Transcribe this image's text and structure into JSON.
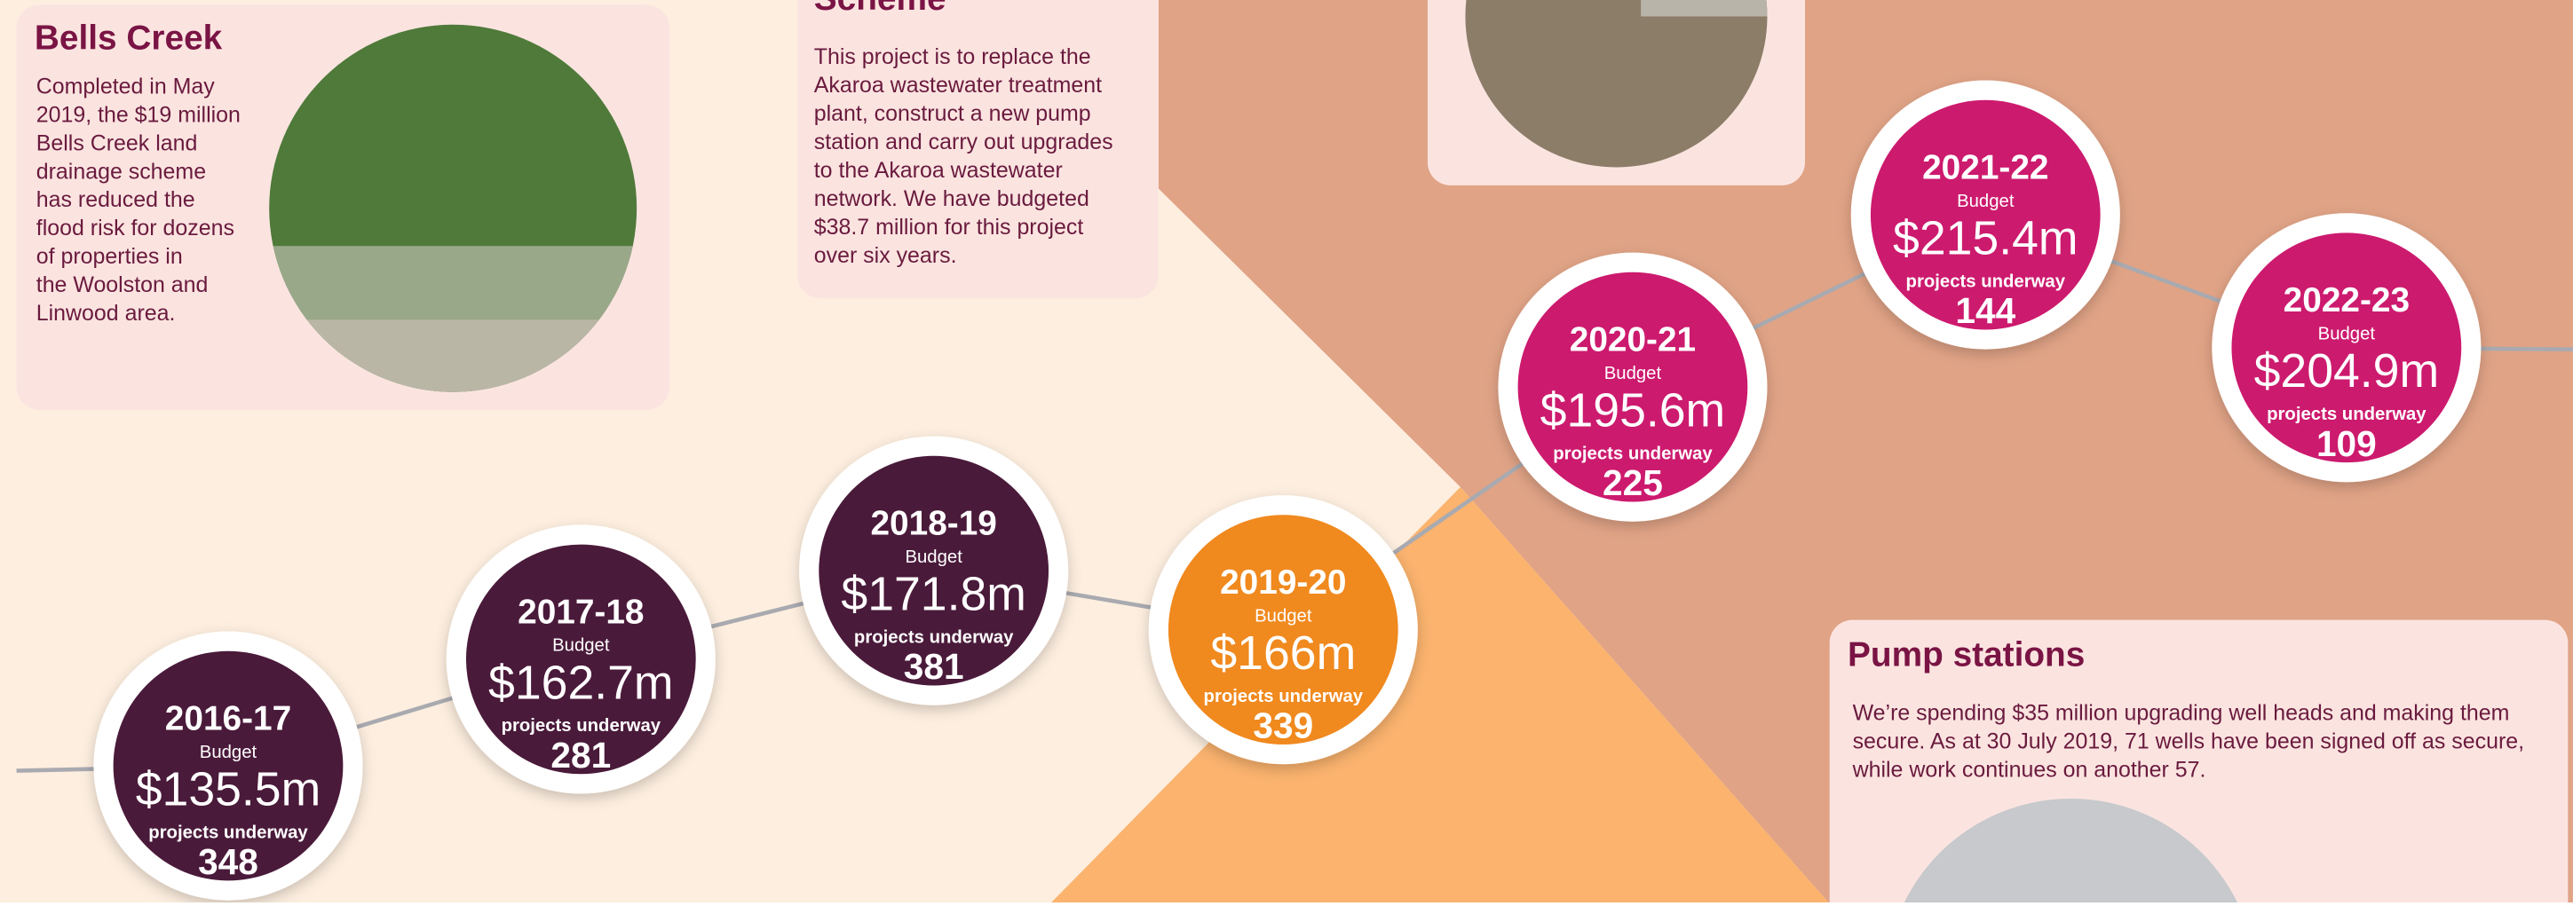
{
  "panels": {
    "bells_creek": {
      "title": "Bells Creek",
      "lines": [
        "Completed in May",
        "2019, the $19 million",
        "Bells Creek land",
        "drainage scheme",
        "has reduced the",
        "flood risk for dozens",
        "of properties in",
        "the Woolston and",
        "Linwood area."
      ]
    },
    "akaroa": {
      "title": "Scheme",
      "lines": [
        "This project is to replace the",
        "Akaroa wastewater treatment",
        "plant, construct a new pump",
        "station and carry out upgrades",
        "to the Akaroa wastewater",
        "network. We have budgeted",
        "$38.7 million for this project",
        "over six years."
      ]
    },
    "pump_stations": {
      "title": "Pump stations",
      "lines": [
        "We’re spending $35 million upgrading well heads and making them",
        "secure. As at 30 July 2019, 71 wells have been signed off as secure,",
        "while work continues on another 57."
      ]
    }
  },
  "timeline": {
    "budget_label": "Budget",
    "projects_label": "projects underway",
    "items": [
      {
        "year": "2016-17",
        "budget": "$135.5m",
        "projects": 348
      },
      {
        "year": "2017-18",
        "budget": "$162.7m",
        "projects": 281
      },
      {
        "year": "2018-19",
        "budget": "$171.8m",
        "projects": 381
      },
      {
        "year": "2019-20",
        "budget": "$166m",
        "projects": 339
      },
      {
        "year": "2020-21",
        "budget": "$195.6m",
        "projects": 225
      },
      {
        "year": "2021-22",
        "budget": "$215.4m",
        "projects": 144
      },
      {
        "year": "2022-23",
        "budget": "$204.9m",
        "projects": 109
      }
    ]
  }
}
